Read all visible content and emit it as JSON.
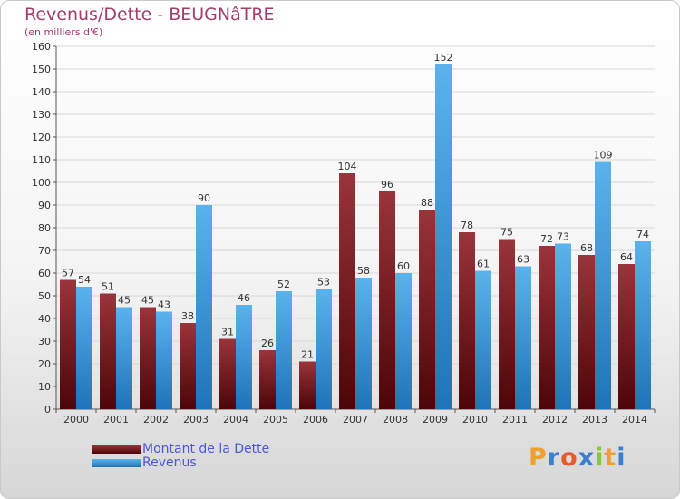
{
  "title": "Revenus/Dette - BEUGNâTRE",
  "subtitle": "(en milliers d'€)",
  "legend": [
    {
      "label": "Montant de la Dette",
      "color": "#7a1f25"
    },
    {
      "label": "Revenus",
      "color": "#3f9fe2"
    }
  ],
  "logo": {
    "letters": [
      "P",
      "r",
      "o",
      "x",
      "i",
      "t",
      "i"
    ],
    "colors": [
      "#f0a030",
      "#3c7fd2",
      "#e85a2a",
      "#3c7fd2",
      "#8cc63f",
      "#f0a030",
      "#3c7fd2"
    ]
  },
  "chart_data": {
    "type": "bar",
    "categories": [
      "2000",
      "2001",
      "2002",
      "2003",
      "2004",
      "2005",
      "2006",
      "2007",
      "2008",
      "2009",
      "2010",
      "2011",
      "2012",
      "2013",
      "2014"
    ],
    "series": [
      {
        "name": "Montant de la Dette",
        "values": [
          57,
          51,
          45,
          38,
          31,
          26,
          21,
          104,
          96,
          88,
          78,
          75,
          72,
          68,
          64
        ],
        "color": "#7a1f25"
      },
      {
        "name": "Revenus",
        "values": [
          54,
          45,
          43,
          90,
          46,
          52,
          53,
          58,
          60,
          152,
          61,
          63,
          73,
          109,
          74
        ],
        "color": "#3f9fe2"
      }
    ],
    "ylim": [
      0,
      160
    ],
    "yticks": [
      0,
      10,
      20,
      30,
      40,
      50,
      60,
      70,
      80,
      90,
      100,
      110,
      120,
      130,
      140,
      150,
      160
    ],
    "grid": true,
    "legend_position": "bottom-left"
  }
}
